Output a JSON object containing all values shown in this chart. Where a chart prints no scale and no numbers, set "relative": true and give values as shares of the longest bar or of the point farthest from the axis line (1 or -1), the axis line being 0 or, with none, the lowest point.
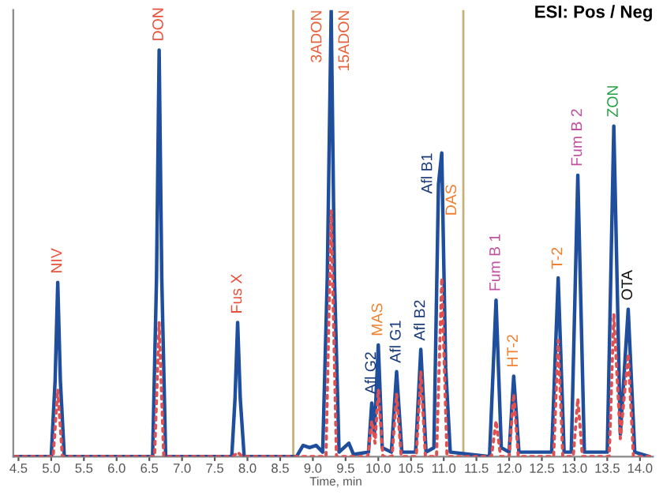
{
  "chart_data": {
    "type": "line",
    "title": "ESI: Pos / Neg",
    "xlabel": "Time, min",
    "relative": true,
    "tick_labels": "x",
    "grid": false,
    "legend": false,
    "marker": "none",
    "xlim": [
      4.42,
      14.2
    ],
    "xticks": [
      4.5,
      {
        "value": 5,
        "label": "5.0"
      },
      5.5,
      {
        "value": 6,
        "label": "6.0"
      },
      6.5,
      {
        "value": 7,
        "label": "7.0"
      },
      7.5,
      {
        "value": 8,
        "label": "8.0"
      },
      8.5,
      {
        "value": 9,
        "label": "9.0"
      },
      9.5,
      {
        "value": 10,
        "label": "10.0"
      },
      10.5,
      {
        "value": 11,
        "label": "11.0"
      },
      11.5,
      {
        "value": 12,
        "label": "12.0"
      },
      12.5,
      {
        "value": 13,
        "label": "13.0"
      },
      13.5,
      {
        "value": 14,
        "label": "14.0"
      }
    ],
    "series": [
      {
        "color": "#1f4e9c",
        "line_style": "solid",
        "x": [
          4.45,
          5.0,
          5.06,
          5.1,
          5.14,
          5.2,
          6.55,
          6.61,
          6.65,
          6.69,
          6.75,
          7.76,
          7.81,
          7.85,
          7.89,
          7.95,
          8.75,
          8.85,
          8.95,
          9.05,
          9.15,
          9.22,
          9.28,
          9.33,
          9.4,
          9.55,
          9.62,
          9.85,
          9.9,
          9.94,
          10.0,
          10.06,
          10.2,
          10.28,
          10.36,
          10.57,
          10.65,
          10.73,
          10.85,
          10.92,
          10.97,
          11.03,
          11.1,
          11.7,
          11.8,
          11.88,
          12.0,
          12.07,
          12.15,
          12.65,
          12.75,
          12.84,
          12.95,
          13.05,
          13.15,
          13.5,
          13.6,
          13.7,
          13.82,
          13.92,
          14.15
        ],
        "values": [
          0,
          0,
          0.17,
          0.39,
          0.17,
          0,
          0,
          0.4,
          0.91,
          0.4,
          0,
          0,
          0.13,
          0.3,
          0.13,
          0,
          0,
          0.025,
          0.02,
          0.025,
          0.01,
          0.4,
          1.0,
          0.4,
          0.01,
          0.03,
          0.005,
          0.01,
          0.12,
          0.05,
          0.25,
          0.02,
          0.01,
          0.19,
          0.01,
          0.01,
          0.24,
          0.01,
          0.02,
          0.61,
          0.68,
          0.2,
          0.01,
          0,
          0.35,
          0.02,
          0.01,
          0.18,
          0.01,
          0.01,
          0.4,
          0.01,
          0.01,
          0.63,
          0.01,
          0.01,
          0.74,
          0.05,
          0.33,
          0.01,
          0
        ]
      },
      {
        "color": "#e05050",
        "line_style": "dotted",
        "x": [
          4.45,
          5.03,
          5.1,
          5.17,
          6.58,
          6.65,
          6.72,
          7.78,
          7.85,
          7.92,
          9.2,
          9.28,
          9.36,
          9.84,
          9.9,
          9.95,
          10.0,
          10.07,
          10.21,
          10.28,
          10.35,
          10.58,
          10.65,
          10.72,
          10.89,
          10.97,
          11.05,
          11.73,
          11.8,
          11.87,
          12.0,
          12.07,
          12.14,
          12.68,
          12.75,
          12.82,
          12.98,
          13.05,
          13.12,
          13.53,
          13.6,
          13.7,
          13.82,
          13.9,
          14.15
        ],
        "values": [
          0,
          0,
          0.15,
          0,
          0,
          0.3,
          0,
          0,
          0.01,
          0,
          0,
          0.55,
          0,
          0,
          0.08,
          0.03,
          0.15,
          0,
          0,
          0.14,
          0,
          0,
          0.19,
          0,
          0,
          0.4,
          0,
          0,
          0.08,
          0,
          0,
          0.14,
          0,
          0,
          0.26,
          0,
          0,
          0.13,
          0,
          0,
          0.32,
          0.04,
          0.23,
          0,
          0
        ]
      }
    ],
    "ref_lines": [
      {
        "axis": "x",
        "value": 8.7,
        "color": "#c8b078"
      },
      {
        "axis": "x",
        "value": 11.3,
        "color": "#c8b078"
      }
    ],
    "annotations": [
      {
        "text": "NIV",
        "x": 5.1,
        "y": 0.39
      },
      {
        "text": "DON",
        "x": 6.65,
        "y": 0.91
      },
      {
        "text": "Fus X",
        "x": 7.85,
        "y": 0.3
      },
      {
        "text": "3ADON",
        "x": 9.28,
        "y": 1.0
      },
      {
        "text": "15ADON",
        "x": 9.28,
        "y": 1.0
      },
      {
        "text": "Afl G2",
        "x": 9.9,
        "y": 0.12
      },
      {
        "text": "MAS",
        "x": 10.0,
        "y": 0.25
      },
      {
        "text": "Afl G1",
        "x": 10.28,
        "y": 0.19
      },
      {
        "text": "Afl B2",
        "x": 10.65,
        "y": 0.24
      },
      {
        "text": "Afl B1",
        "x": 10.97,
        "y": 0.68
      },
      {
        "text": "DAS",
        "x": 10.92,
        "y": 0.61
      },
      {
        "text": "Fum B 1",
        "x": 11.8,
        "y": 0.35
      },
      {
        "text": "HT-2",
        "x": 12.07,
        "y": 0.18
      },
      {
        "text": "T-2",
        "x": 12.75,
        "y": 0.4
      },
      {
        "text": "Fum B 2",
        "x": 13.05,
        "y": 0.63
      },
      {
        "text": "ZON",
        "x": 13.6,
        "y": 0.74
      },
      {
        "text": "OTA",
        "x": 13.82,
        "y": 0.33
      }
    ]
  }
}
